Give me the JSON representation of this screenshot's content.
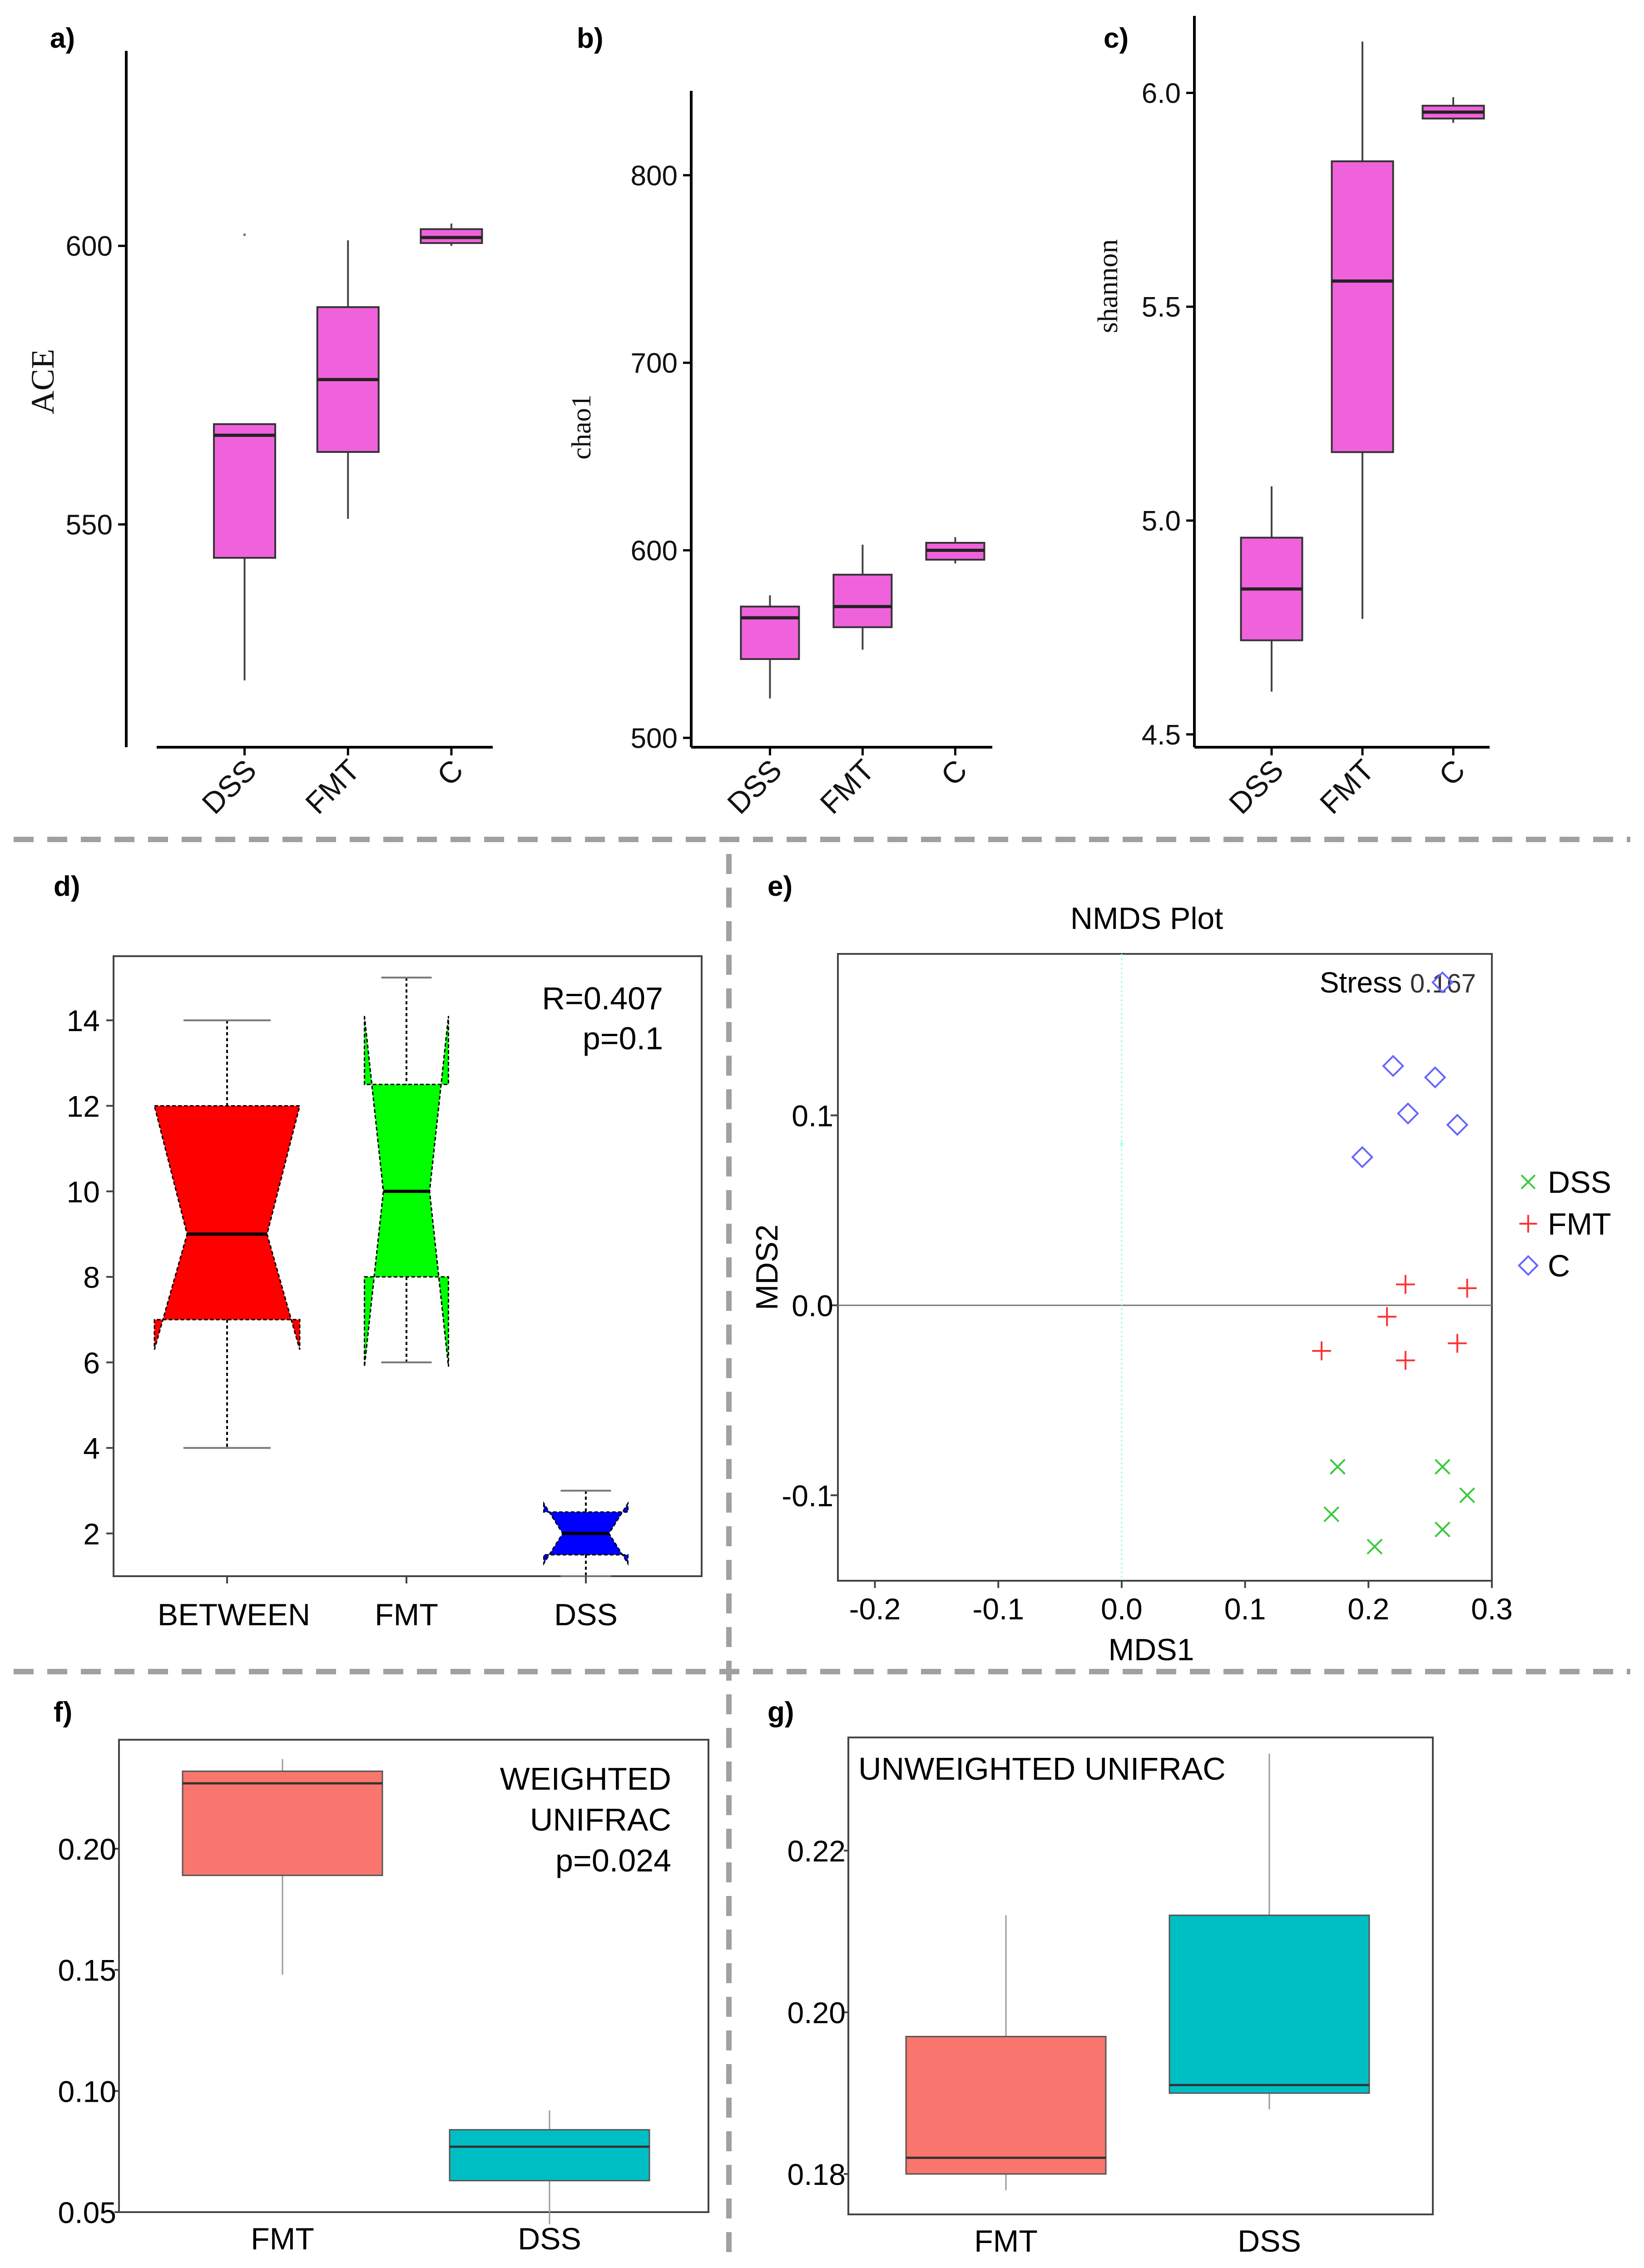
{
  "colors": {
    "pink": "#F062DC",
    "red": "#FF0000",
    "green": "#00FF00",
    "blue": "#0000FF",
    "salmon": "#F8766D",
    "teal": "#00BFC4",
    "nmds_dss": "#3CC83C",
    "nmds_fmt": "#FF3333",
    "nmds_c": "#6666FF",
    "divider": "#A0A0A0"
  },
  "chart_data": [
    {
      "id": "a",
      "panel_label": "a)",
      "type": "box",
      "ylabel": "ACE",
      "ylim": [
        510,
        635
      ],
      "yticks": [
        550,
        600
      ],
      "categories": [
        "DSS",
        "FMT",
        "C"
      ],
      "boxes": [
        {
          "name": "DSS",
          "min": 522,
          "q1": 544,
          "median": 566,
          "q3": 568,
          "max": 568,
          "outliers": [
            602
          ]
        },
        {
          "name": "FMT",
          "min": 551,
          "q1": 563,
          "median": 576,
          "q3": 589,
          "max": 601,
          "outliers": []
        },
        {
          "name": "C",
          "min": 600,
          "q1": 600.5,
          "median": 601.5,
          "q3": 603,
          "max": 604,
          "outliers": []
        }
      ]
    },
    {
      "id": "b",
      "panel_label": "b)",
      "type": "box",
      "ylabel": "chao1",
      "ylim": [
        495,
        845
      ],
      "yticks": [
        500,
        600,
        700,
        800
      ],
      "categories": [
        "DSS",
        "FMT",
        "C"
      ],
      "boxes": [
        {
          "name": "DSS",
          "min": 521,
          "q1": 542,
          "median": 564,
          "q3": 570,
          "max": 576,
          "outliers": []
        },
        {
          "name": "FMT",
          "min": 547,
          "q1": 559,
          "median": 570,
          "q3": 587,
          "max": 603,
          "outliers": []
        },
        {
          "name": "C",
          "min": 593,
          "q1": 595,
          "median": 600,
          "q3": 604,
          "max": 607,
          "outliers": []
        }
      ]
    },
    {
      "id": "c",
      "panel_label": "c)",
      "type": "box",
      "ylabel": "shannon",
      "ylim": [
        4.47,
        6.18
      ],
      "yticks": [
        "4.5",
        "5.0",
        "5.5",
        "6.0"
      ],
      "categories": [
        "DSS",
        "FMT",
        "C"
      ],
      "boxes": [
        {
          "name": "DSS",
          "min": 4.6,
          "q1": 4.72,
          "median": 4.84,
          "q3": 4.96,
          "max": 5.08,
          "outliers": []
        },
        {
          "name": "FMT",
          "min": 4.77,
          "q1": 5.16,
          "median": 5.56,
          "q3": 5.84,
          "max": 6.12,
          "outliers": []
        },
        {
          "name": "C",
          "min": 5.93,
          "q1": 5.94,
          "median": 5.955,
          "q3": 5.97,
          "max": 5.99,
          "outliers": []
        }
      ]
    },
    {
      "id": "d",
      "panel_label": "d)",
      "type": "notched_box",
      "ylim": [
        1,
        15.5
      ],
      "yticks": [
        2,
        4,
        6,
        8,
        10,
        12,
        14
      ],
      "annotation": [
        "R=0.407",
        "p=0.1"
      ],
      "categories": [
        "BETWEEN",
        "FMT",
        "DSS"
      ],
      "boxes": [
        {
          "name": "BETWEEN",
          "min": 4,
          "q1": 7,
          "median": 9,
          "q3": 12,
          "max": 14,
          "notch_low": 6.3,
          "notch_high": 12
        },
        {
          "name": "FMT",
          "min": 6,
          "q1": 8,
          "median": 10,
          "q3": 12.5,
          "max": 15,
          "notch_low": 5.9,
          "notch_high": 14.1
        },
        {
          "name": "DSS",
          "min": 1,
          "q1": 1.5,
          "median": 2,
          "q3": 2.5,
          "max": 3,
          "notch_low": 1.3,
          "notch_high": 2.7
        }
      ]
    },
    {
      "id": "e",
      "panel_label": "e)",
      "type": "scatter",
      "title": "NMDS Plot",
      "xlabel": "MDS1",
      "ylabel": "MDS2",
      "xlim": [
        -0.23,
        0.3
      ],
      "ylim": [
        -0.145,
        0.185
      ],
      "xticks": [
        "-0.2",
        "-0.1",
        "0.0",
        "0.1",
        "0.2",
        "0.3"
      ],
      "yticks": [
        "-0.1",
        "0.0",
        "0.1"
      ],
      "stress_label": "Stress",
      "stress_value": "0.167",
      "series": [
        {
          "name": "DSS",
          "marker": "x",
          "points": [
            [
              0.175,
              -0.085
            ],
            [
              0.17,
              -0.11
            ],
            [
              0.205,
              -0.127
            ],
            [
              0.26,
              -0.085
            ],
            [
              0.28,
              -0.1
            ],
            [
              0.26,
              -0.118
            ]
          ]
        },
        {
          "name": "FMT",
          "marker": "+",
          "points": [
            [
              0.162,
              -0.024
            ],
            [
              0.215,
              -0.006
            ],
            [
              0.23,
              0.011
            ],
            [
              0.23,
              -0.029
            ],
            [
              0.28,
              0.009
            ],
            [
              0.272,
              -0.02
            ]
          ]
        },
        {
          "name": "C",
          "marker": "diamond",
          "points": [
            [
              0.195,
              0.078
            ],
            [
              0.22,
              0.126
            ],
            [
              0.232,
              0.101
            ],
            [
              0.254,
              0.12
            ],
            [
              0.272,
              0.095
            ],
            [
              0.26,
              0.17
            ]
          ]
        }
      ]
    },
    {
      "id": "f",
      "panel_label": "f)",
      "type": "box",
      "ylim": [
        0.05,
        0.245
      ],
      "yticks": [
        "0.05",
        "0.10",
        "0.15",
        "0.20"
      ],
      "annotation": [
        "WEIGHTED",
        "UNIFRAC",
        "p=0.024"
      ],
      "categories": [
        "FMT",
        "DSS"
      ],
      "boxes": [
        {
          "name": "FMT",
          "min": 0.148,
          "q1": 0.189,
          "median": 0.227,
          "q3": 0.232,
          "max": 0.237,
          "outliers": []
        },
        {
          "name": "DSS",
          "min": 0.045,
          "q1": 0.063,
          "median": 0.077,
          "q3": 0.084,
          "max": 0.092,
          "outliers": []
        }
      ]
    },
    {
      "id": "g",
      "panel_label": "g)",
      "type": "box",
      "ylim": [
        0.175,
        0.234
      ],
      "yticks": [
        "0.18",
        "0.20",
        "0.22"
      ],
      "annotation": [
        "UNWEIGHTED UNIFRAC"
      ],
      "categories": [
        "FMT",
        "DSS"
      ],
      "boxes": [
        {
          "name": "FMT",
          "min": 0.178,
          "q1": 0.18,
          "median": 0.182,
          "q3": 0.197,
          "max": 0.212,
          "outliers": []
        },
        {
          "name": "DSS",
          "min": 0.188,
          "q1": 0.19,
          "median": 0.191,
          "q3": 0.212,
          "max": 0.232,
          "outliers": []
        }
      ]
    }
  ]
}
